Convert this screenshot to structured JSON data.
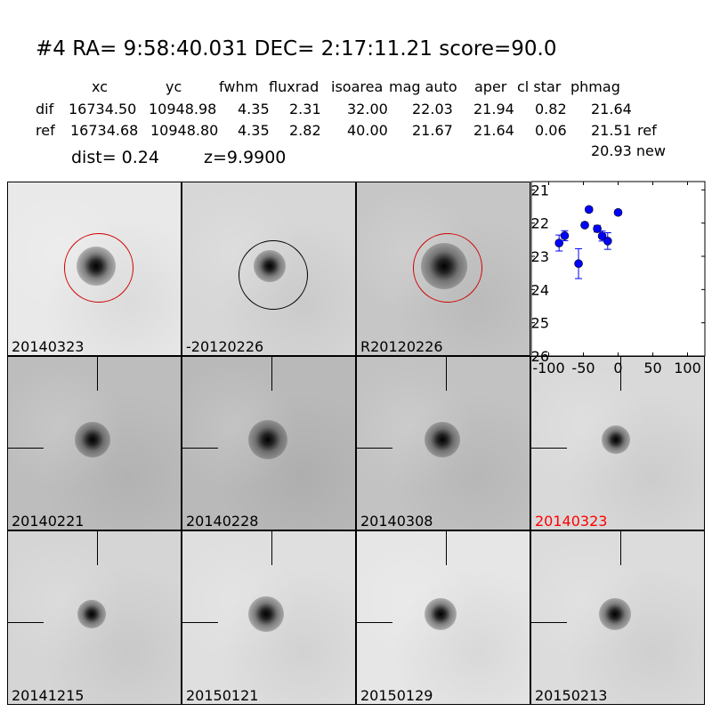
{
  "title": "#4   RA= 9:58:40.031 DEC= 2:17:11.21      score=90.0",
  "table": {
    "headers": [
      "xc",
      "yc",
      "fwhm",
      "fluxrad",
      "isoarea",
      "mag auto",
      "aper",
      "cl star",
      "phmag"
    ],
    "rows": [
      {
        "label": "dif",
        "values": [
          "16734.50",
          "10948.98",
          "4.35",
          "2.31",
          "32.00",
          "22.03",
          "21.94",
          "0.82",
          "21.64"
        ],
        "suffix": ""
      },
      {
        "label": "ref",
        "values": [
          "16734.68",
          "10948.80",
          "4.35",
          "2.82",
          "40.00",
          "21.67",
          "21.64",
          "0.06",
          "21.51"
        ],
        "suffix": "ref"
      }
    ],
    "new_phmag": "20.93 new"
  },
  "dist": "dist=  0.24",
  "z": "z=9.9900",
  "panels": [
    {
      "label": "20140323",
      "bg": "#e9e9e9",
      "circle": "#d00000"
    },
    {
      "label": "-20120226",
      "bg": "#d7d7d7",
      "circle": "#000000"
    },
    {
      "label": "R20120226",
      "bg": "#c6c6c6",
      "circle": "#d00000"
    },
    {
      "label": "20140221",
      "bg": "#bdbdbd"
    },
    {
      "label": "20140228",
      "bg": "#b9b9b9"
    },
    {
      "label": "20140308",
      "bg": "#c2c2c2"
    },
    {
      "label": "20140323",
      "bg": "#d9d9d9",
      "label_color": "#ff0000"
    },
    {
      "label": "20141215",
      "bg": "#d5d5d5"
    },
    {
      "label": "20150121",
      "bg": "#dfdfdf"
    },
    {
      "label": "20150129",
      "bg": "#e6e6e6"
    },
    {
      "label": "20150213",
      "bg": "#dcdcdc"
    }
  ],
  "chart_data": {
    "type": "scatter",
    "xlim": [
      -125,
      125
    ],
    "ylim": [
      26,
      20.75
    ],
    "y_inverted": true,
    "xticks": [
      "-100",
      "-50",
      "0",
      "50",
      "100"
    ],
    "xtick_values": [
      -100,
      -50,
      0,
      50,
      100
    ],
    "yticks": [
      "21",
      "22",
      "23",
      "24",
      "25",
      "26"
    ],
    "ytick_values": [
      21,
      22,
      23,
      24,
      25,
      26
    ],
    "color": "#0000ff",
    "points": [
      {
        "x": -85,
        "y": 22.6,
        "err": 0.24
      },
      {
        "x": -77,
        "y": 22.38,
        "err": 0.15
      },
      {
        "x": -57,
        "y": 23.22,
        "err": 0.45
      },
      {
        "x": -48,
        "y": 22.06,
        "err": 0.07
      },
      {
        "x": -42,
        "y": 21.59,
        "err": 0.07
      },
      {
        "x": -30,
        "y": 22.17,
        "err": 0.1
      },
      {
        "x": -23,
        "y": 22.39,
        "err": 0.15
      },
      {
        "x": -15,
        "y": 22.54,
        "err": 0.25
      },
      {
        "x": 0,
        "y": 21.68,
        "err": 0.07
      }
    ]
  }
}
